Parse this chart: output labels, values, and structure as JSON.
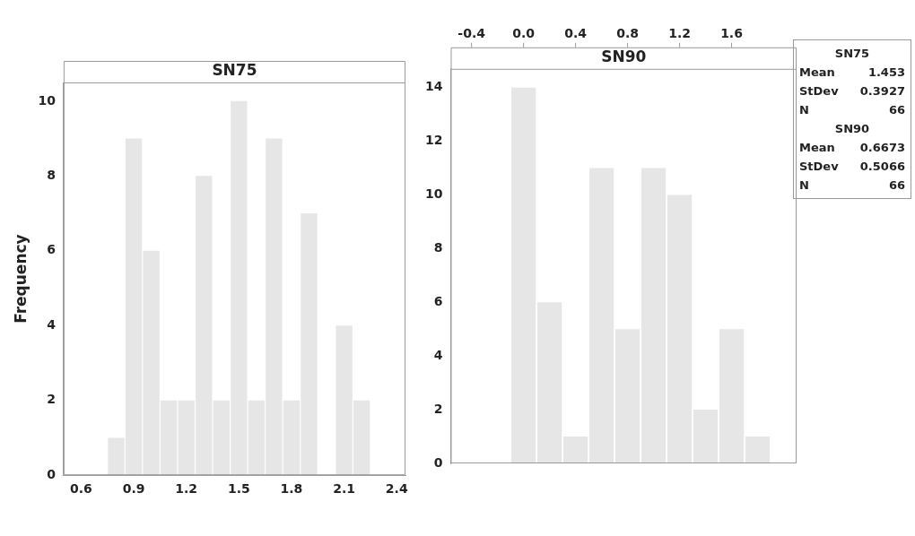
{
  "chart_data": [
    {
      "type": "histogram",
      "title": "SN75",
      "ylabel": "Frequency",
      "bins": [
        0.75,
        0.85,
        0.95,
        1.05,
        1.15,
        1.25,
        1.35,
        1.45,
        1.55,
        1.65,
        1.75,
        1.85,
        1.95,
        2.05,
        2.15,
        2.25
      ],
      "values": [
        1,
        9,
        6,
        2,
        2,
        8,
        2,
        10,
        2,
        9,
        2,
        7,
        0,
        4,
        2
      ],
      "color": "#e6e6e6",
      "xlim": [
        0.5,
        2.45
      ],
      "xticks": [
        0.6,
        0.9,
        1.2,
        1.5,
        1.8,
        2.1,
        2.4
      ],
      "ylim": [
        0,
        10.5
      ],
      "yticks": [
        0,
        2,
        4,
        6,
        8,
        10
      ]
    },
    {
      "type": "histogram",
      "title": "SN90",
      "bins": [
        -0.1,
        0.1,
        0.3,
        0.5,
        0.7,
        0.9,
        1.1,
        1.3,
        1.5,
        1.7,
        1.9
      ],
      "values": [
        14,
        6,
        1,
        11,
        5,
        11,
        10,
        2,
        5,
        1
      ],
      "color": "#e6e6e6",
      "xlim": [
        -0.56,
        2.1
      ],
      "xticks": [
        -0.4,
        {
          "value": 0,
          "label": "0.0"
        },
        0.4,
        0.8,
        1.2,
        1.6
      ],
      "ylim": [
        0,
        14.7
      ],
      "yticks": [
        0,
        2,
        4,
        6,
        8,
        10,
        12,
        14
      ]
    },
    {
      "type": "other",
      "annotations": [
        "SN75",
        "Mean 1.453",
        "StDev 0.3927",
        "N 66",
        "SN90",
        "Mean 0.6673",
        "StDev 0.5066",
        "N 66"
      ]
    }
  ]
}
